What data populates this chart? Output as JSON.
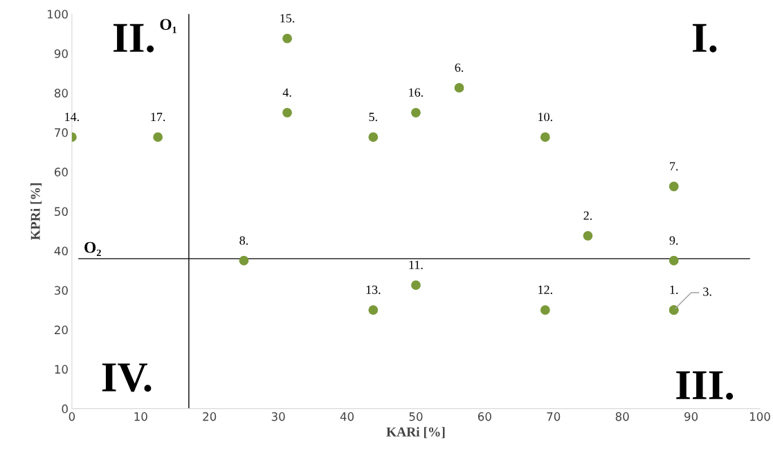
{
  "chart_data": {
    "type": "scatter",
    "xlabel": "KARi [%]",
    "ylabel": "KPRi [%]",
    "x": [
      87.5,
      75,
      87.5,
      31.3,
      43.8,
      56.3,
      87.5,
      25,
      87.5,
      68.8,
      50,
      68.8,
      43.8,
      0,
      31.3,
      50,
      12.5
    ],
    "series": [
      {
        "color": "#7a9a3a",
        "values": [
          25,
          43.8,
          25,
          75,
          68.8,
          81.3,
          56.3,
          37.5,
          37.5,
          68.8,
          31.3,
          25,
          25,
          68.8,
          93.8,
          75,
          68.8
        ]
      }
    ],
    "xlim": [
      0,
      100
    ],
    "ylim": [
      0,
      100
    ],
    "xticks": [
      0,
      10,
      20,
      30,
      40,
      50,
      60,
      70,
      80,
      90,
      100
    ],
    "yticks": [
      0,
      10,
      20,
      30,
      40,
      50,
      60,
      70,
      80,
      90,
      100
    ],
    "marker": "circle",
    "ref_lines": [
      {
        "axis": "x",
        "value": 17,
        "label": "O₁",
        "color": "#000000"
      },
      {
        "axis": "y",
        "value": 38,
        "label": "O₂",
        "color": "#000000"
      }
    ],
    "annotations": [
      "I.",
      "II.",
      "III.",
      "IV.",
      {
        "text": "1.",
        "x": 87.5,
        "y": 25
      },
      {
        "text": "2.",
        "x": 75,
        "y": 43.8
      },
      {
        "text": "3.",
        "x": 87.5,
        "y": 25
      },
      {
        "text": "4.",
        "x": 31.3,
        "y": 75
      },
      {
        "text": "5.",
        "x": 43.8,
        "y": 68.8
      },
      {
        "text": "6.",
        "x": 56.3,
        "y": 81.3
      },
      {
        "text": "7.",
        "x": 87.5,
        "y": 56.3
      },
      {
        "text": "8.",
        "x": 25,
        "y": 37.5
      },
      {
        "text": "9.",
        "x": 87.5,
        "y": 37.5
      },
      {
        "text": "10.",
        "x": 68.8,
        "y": 68.8
      },
      {
        "text": "11.",
        "x": 50,
        "y": 31.3
      },
      {
        "text": "12.",
        "x": 68.8,
        "y": 25
      },
      {
        "text": "13.",
        "x": 43.8,
        "y": 25
      },
      {
        "text": "14.",
        "x": 0,
        "y": 68.8
      },
      {
        "text": "15.",
        "x": 31.3,
        "y": 93.8
      },
      {
        "text": "16.",
        "x": 50,
        "y": 75
      },
      {
        "text": "17.",
        "x": 12.5,
        "y": 68.8
      }
    ]
  }
}
